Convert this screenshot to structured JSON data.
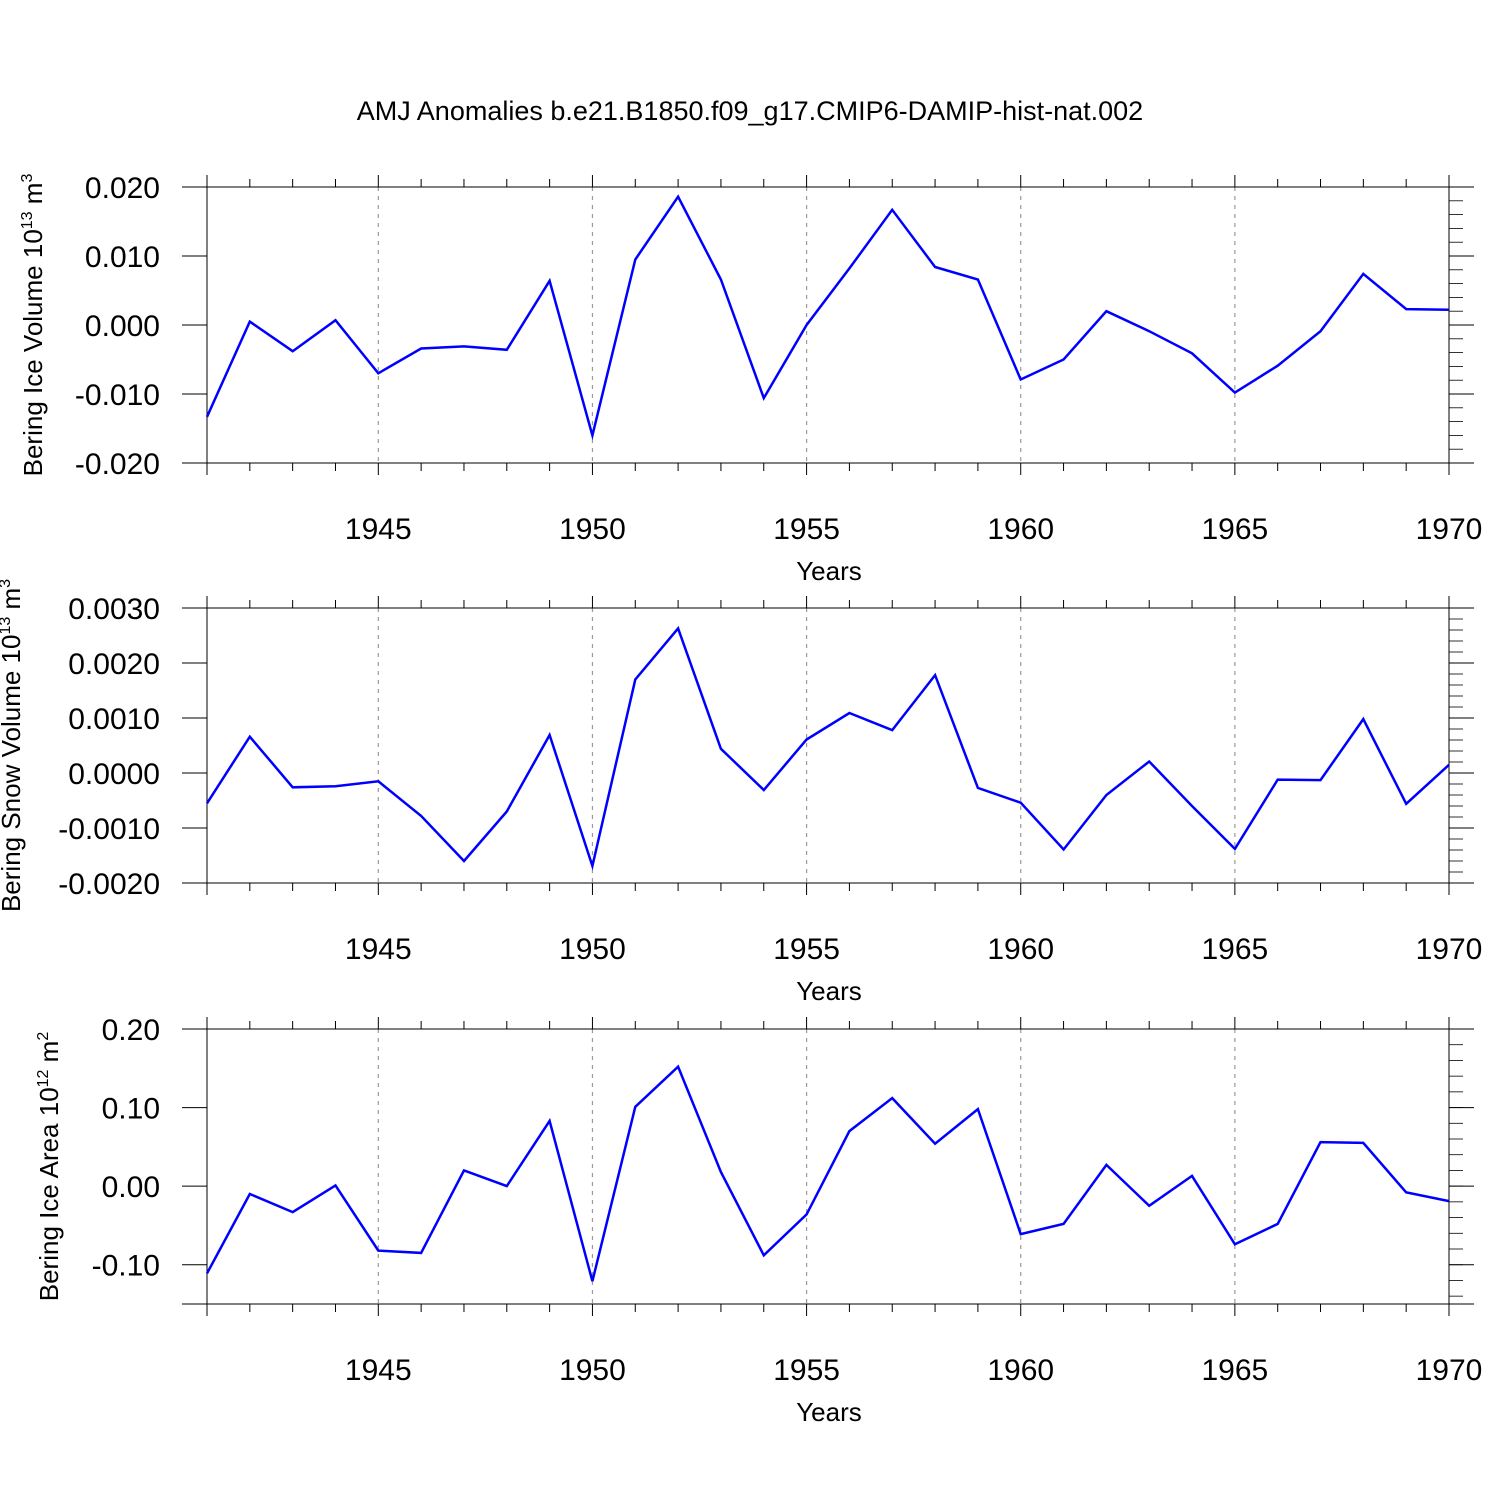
{
  "title": "AMJ Anomalies b.e21.B1850.f09_g17.CMIP6-DAMIP-hist-nat.002",
  "colors": {
    "series": "#0000ff",
    "axis": "#000000",
    "grid": "#9a9a9a"
  },
  "chart_data": [
    {
      "type": "line",
      "ylabel": "Bering Ice Volume 10",
      "ylabel_exp": "13",
      "ylabel_unit": " m",
      "ylabel_unit_exp": "3",
      "xlabel": "Years",
      "xlim": [
        1941,
        1970
      ],
      "ylim": [
        -0.02,
        0.02
      ],
      "x_ticks": [
        1945,
        1950,
        1955,
        1960,
        1965,
        1970
      ],
      "x_tick_labels": [
        "1945",
        "1950",
        "1955",
        "1960",
        "1965",
        "1970"
      ],
      "y_ticks": [
        -0.02,
        -0.01,
        0.0,
        0.01,
        0.02
      ],
      "y_tick_labels": [
        "-0.020",
        "-0.010",
        "0.000",
        "0.010",
        "0.020"
      ],
      "x": [
        1941,
        1942,
        1943,
        1944,
        1945,
        1946,
        1947,
        1948,
        1949,
        1950,
        1951,
        1952,
        1953,
        1954,
        1955,
        1956,
        1957,
        1958,
        1959,
        1960,
        1961,
        1962,
        1963,
        1964,
        1965,
        1966,
        1967,
        1968,
        1969,
        1970
      ],
      "y": [
        -0.0133,
        0.0005,
        -0.0038,
        0.0007,
        -0.007,
        -0.0034,
        -0.0031,
        -0.0036,
        0.0064,
        -0.016,
        0.0095,
        0.0186,
        0.0066,
        -0.0106,
        0.0,
        0.0082,
        0.0167,
        0.0084,
        0.0066,
        -0.0079,
        -0.005,
        0.002,
        -0.0009,
        -0.0041,
        -0.0098,
        -0.0059,
        -0.0009,
        0.0074,
        0.0023,
        0.0022
      ]
    },
    {
      "type": "line",
      "ylabel": "Bering Snow Volume 10",
      "ylabel_exp": "13",
      "ylabel_unit": " m",
      "ylabel_unit_exp": "3",
      "xlabel": "Years",
      "xlim": [
        1941,
        1970
      ],
      "ylim": [
        -0.002,
        0.003
      ],
      "x_ticks": [
        1945,
        1950,
        1955,
        1960,
        1965,
        1970
      ],
      "x_tick_labels": [
        "1945",
        "1950",
        "1955",
        "1960",
        "1965",
        "1970"
      ],
      "y_ticks": [
        -0.002,
        -0.001,
        0.0,
        0.001,
        0.002,
        0.003
      ],
      "y_tick_labels": [
        "-0.0020",
        "-0.0010",
        "0.0000",
        "0.0010",
        "0.0020",
        "0.0030"
      ],
      "x": [
        1941,
        1942,
        1943,
        1944,
        1945,
        1946,
        1947,
        1948,
        1949,
        1950,
        1951,
        1952,
        1953,
        1954,
        1955,
        1956,
        1957,
        1958,
        1959,
        1960,
        1961,
        1962,
        1963,
        1964,
        1965,
        1966,
        1967,
        1968,
        1969,
        1970
      ],
      "y": [
        -0.00055,
        0.00066,
        -0.00026,
        -0.00024,
        -0.00015,
        -0.00078,
        -0.0016,
        -0.0007,
        0.00069,
        -0.00169,
        0.0017,
        0.00263,
        0.00044,
        -0.00031,
        0.00061,
        0.00109,
        0.00078,
        0.00178,
        -0.00027,
        -0.00054,
        -0.00139,
        -0.0004,
        0.00021,
        -0.0006,
        -0.00138,
        -0.00012,
        -0.00013,
        0.00098,
        -0.00056,
        0.00015
      ]
    },
    {
      "type": "line",
      "ylabel": "Bering Ice Area 10",
      "ylabel_exp": "12",
      "ylabel_unit": " m",
      "ylabel_unit_exp": "2",
      "xlabel": "Years",
      "xlim": [
        1941,
        1970
      ],
      "ylim": [
        -0.15,
        0.2
      ],
      "x_ticks": [
        1945,
        1950,
        1955,
        1960,
        1965,
        1970
      ],
      "x_tick_labels": [
        "1945",
        "1950",
        "1955",
        "1960",
        "1965",
        "1970"
      ],
      "y_ticks": [
        -0.1,
        0.0,
        0.1,
        0.2
      ],
      "y_tick_labels": [
        "-0.10",
        "0.00",
        "0.10",
        "0.20"
      ],
      "x": [
        1941,
        1942,
        1943,
        1944,
        1945,
        1946,
        1947,
        1948,
        1949,
        1950,
        1951,
        1952,
        1953,
        1954,
        1955,
        1956,
        1957,
        1958,
        1959,
        1960,
        1961,
        1962,
        1963,
        1964,
        1965,
        1966,
        1967,
        1968,
        1969,
        1970
      ],
      "y": [
        -0.111,
        -0.01,
        -0.033,
        0.001,
        -0.082,
        -0.085,
        0.02,
        0.0,
        0.083,
        -0.121,
        0.101,
        0.152,
        0.018,
        -0.088,
        -0.036,
        0.07,
        0.112,
        0.054,
        0.098,
        -0.061,
        -0.048,
        0.027,
        -0.025,
        0.013,
        -0.074,
        -0.048,
        0.056,
        0.055,
        -0.008,
        -0.019
      ]
    }
  ]
}
